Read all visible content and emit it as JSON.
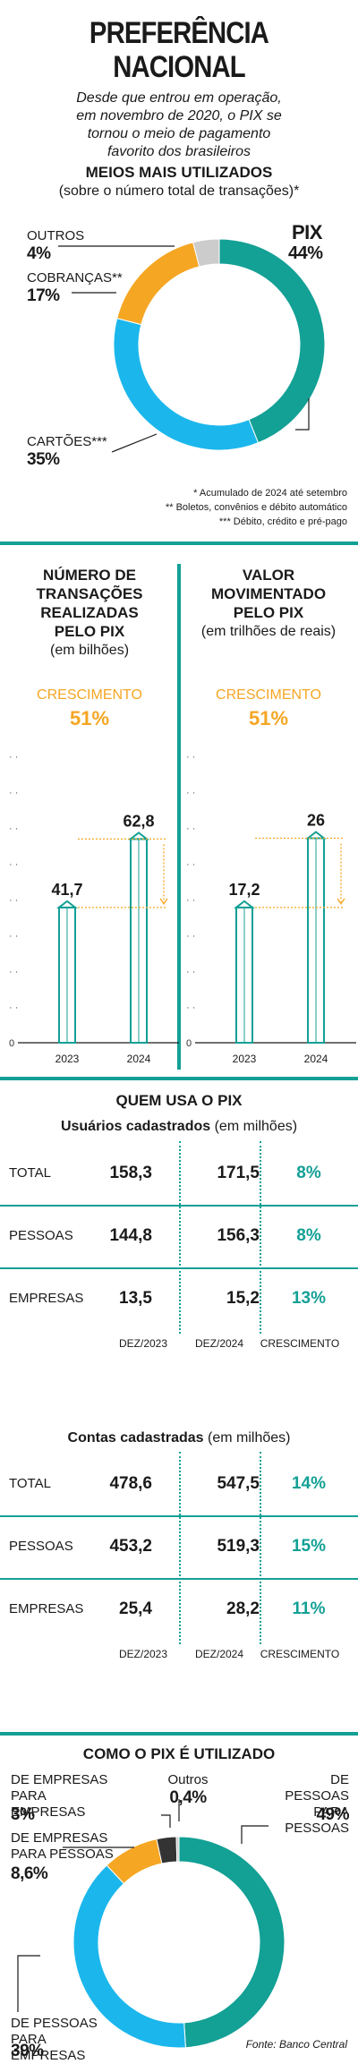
{
  "title": "PREFERÊNCIA NACIONAL",
  "subtitle": "Desde que entrou em operação, em novembro de 2020, o PIX se tornou o meio de pagamento favorito dos brasileiros",
  "donut1": {
    "heading": "MEIOS MAIS UTILIZADOS",
    "subheading": "(sobre o número total de transações)*",
    "labels": {
      "pix_name": "PIX",
      "pix_value": "44%",
      "cards_name": "CARTÕES***",
      "cards_value": "35%",
      "boletos_name": "COBRANÇAS**",
      "boletos_value": "17%",
      "others_name": "OUTROS",
      "others_value": "4%"
    },
    "notes": [
      "* Acumulado de 2024 até setembro",
      "** Boletos, convênios e débito automático",
      "*** Débito, crédito e pré-pago"
    ]
  },
  "transactions": {
    "heading": "NÚMERO DE TRANSAÇÕES REALIZADAS PELO PIX",
    "unit": "(em bilhões)",
    "growth_label": "CRESCIMENTO",
    "growth_value": "51%",
    "zero": "0"
  },
  "volume": {
    "heading": "VALOR MOVIMENTADO PELO PIX",
    "unit": "(em trilhões de reais)",
    "growth_label": "CRESCIMENTO",
    "growth_value": "51%",
    "zero": "0"
  },
  "users": {
    "heading": "QUEM USA O PIX",
    "table1_title_bold": "Usuários cadastrados",
    "table1_title_unit": " (em milhões)",
    "table2_title_bold": "Contas cadastradas",
    "table2_title_unit": " (em milhões)",
    "col_labels": [
      "DEZ/2023",
      "DEZ/2024",
      "CRESCIMENTO"
    ],
    "table1": [
      {
        "label": "TOTAL",
        "a": "158,3",
        "b": "171,5",
        "g": "8%"
      },
      {
        "label": "PESSOAS",
        "a": "144,8",
        "b": "156,3",
        "g": "8%"
      },
      {
        "label": "EMPRESAS",
        "a": "13,5",
        "b": "15,2",
        "g": "13%"
      }
    ],
    "table2": [
      {
        "label": "TOTAL",
        "a": "478,6",
        "b": "547,5",
        "g": "14%"
      },
      {
        "label": "PESSOAS",
        "a": "453,2",
        "b": "519,3",
        "g": "15%"
      },
      {
        "label": "EMPRESAS",
        "a": "25,4",
        "b": "28,2",
        "g": "11%"
      }
    ]
  },
  "donut2": {
    "heading": "COMO O PIX É UTILIZADO",
    "labels": {
      "p2p_name": "DE PESSOAS PARA PESSOAS",
      "p2p_value": "49%",
      "p2b_name": "DE PESSOAS PARA EMPRESAS",
      "p2b_value": "39%",
      "b2p_name": "DE EMPRESAS PARA PESSOAS",
      "b2p_value": "8,6%",
      "b2b_name": "DE EMPRESAS PARA EMPRESAS",
      "b2b_value": "3%",
      "other_name": "Outros",
      "other_value": "0,4%"
    },
    "source": "Fonte: Banco Central"
  },
  "colors": {
    "teal": "#13a095",
    "cyan": "#1bb7ec",
    "orange": "#f5a623",
    "gray": "#cccccc",
    "dark": "#333333"
  },
  "chart_data": [
    {
      "type": "pie",
      "title": "MEIOS MAIS UTILIZADOS",
      "subtitle": "(sobre o número total de transações)*",
      "categories": [
        "PIX",
        "CARTÕES***",
        "COBRANÇAS**",
        "OUTROS"
      ],
      "values": [
        44,
        35,
        17,
        4
      ],
      "colors": [
        "#13a095",
        "#1bb7ec",
        "#f5a623",
        "#cccccc"
      ]
    },
    {
      "type": "bar",
      "title": "NÚMERO DE TRANSAÇÕES REALIZADAS PELO PIX",
      "ylabel": "(em bilhões)",
      "categories": [
        "2023",
        "2024"
      ],
      "values": [
        41.7,
        62.8
      ],
      "value_labels": [
        "41,7",
        "62,8"
      ],
      "ylim": [
        0,
        80
      ]
    },
    {
      "type": "bar",
      "title": "VALOR MOVIMENTADO PELO PIX",
      "ylabel": "(em trilhões de reais)",
      "categories": [
        "2023",
        "2024"
      ],
      "values": [
        17.2,
        26
      ],
      "value_labels": [
        "17,2",
        "26"
      ],
      "ylim": [
        0,
        33
      ]
    },
    {
      "type": "pie",
      "title": "COMO O PIX É UTILIZADO",
      "categories": [
        "DE PESSOAS PARA PESSOAS",
        "DE PESSOAS PARA EMPRESAS",
        "DE EMPRESAS PARA PESSOAS",
        "DE EMPRESAS PARA EMPRESAS",
        "Outros"
      ],
      "values": [
        49,
        39,
        8.6,
        3,
        0.4
      ],
      "colors": [
        "#13a095",
        "#1bb7ec",
        "#f5a623",
        "#333333",
        "#cccccc"
      ]
    }
  ]
}
